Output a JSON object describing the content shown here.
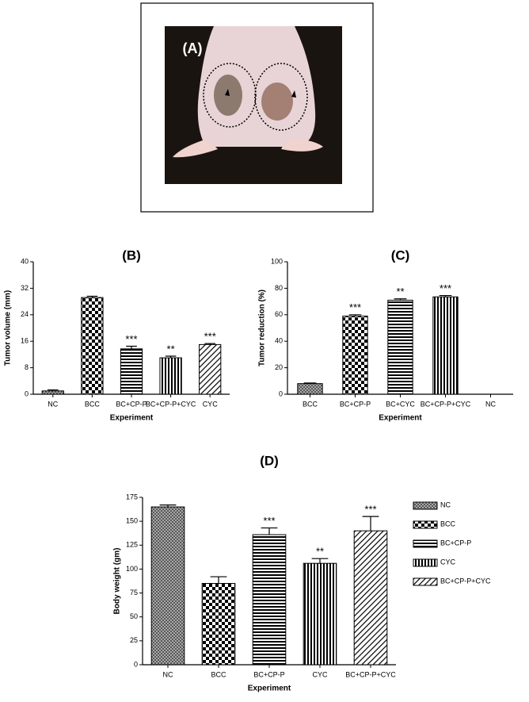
{
  "image_panel": {
    "label": "(A)"
  },
  "chart_data": [
    {
      "type": "bar",
      "title": "(B)",
      "ylabel": "Tumor volume (mm)",
      "xlabel": "Experiment",
      "categories": [
        "NC",
        "BCC",
        "BC+CP-P",
        "BC+CP-P+CYC",
        "CYC"
      ],
      "values": [
        1,
        29.2,
        13.7,
        11,
        15
      ],
      "errors": [
        0.3,
        0.4,
        0.8,
        0.5,
        0.3
      ],
      "annotations": [
        null,
        null,
        "***",
        "**",
        "***"
      ],
      "ylim": [
        0,
        40
      ],
      "yticks": [
        0,
        8,
        16,
        24,
        32,
        40
      ]
    },
    {
      "type": "bar",
      "title": "(C)",
      "ylabel": "Tumor reduction (%)",
      "xlabel": "Experiment",
      "categories": [
        "BCC",
        "BC+CP-P",
        "BC+CYC",
        "BC+CP-P+CYC",
        "NC"
      ],
      "values": [
        8,
        59,
        71,
        73.5,
        0
      ],
      "errors": [
        0.5,
        1,
        1,
        1,
        0
      ],
      "annotations": [
        null,
        "***",
        "**",
        "***",
        null
      ],
      "ylim": [
        0,
        100
      ],
      "yticks": [
        0,
        20,
        40,
        60,
        80,
        100
      ]
    },
    {
      "type": "bar",
      "title": "(D)",
      "ylabel": "Body weight (gm)",
      "xlabel": "Experiment",
      "categories": [
        "NC",
        "BCC",
        "BC+CP-P",
        "CYC",
        "BC+CP-P+CYC"
      ],
      "values": [
        165,
        85,
        136,
        106,
        140
      ],
      "errors": [
        2,
        7,
        7,
        5,
        15
      ],
      "annotations": [
        null,
        null,
        "***",
        "**",
        "***"
      ],
      "ylim": [
        0,
        175
      ],
      "yticks": [
        0,
        25,
        50,
        75,
        100,
        125,
        150,
        175
      ],
      "legend": "right"
    }
  ]
}
